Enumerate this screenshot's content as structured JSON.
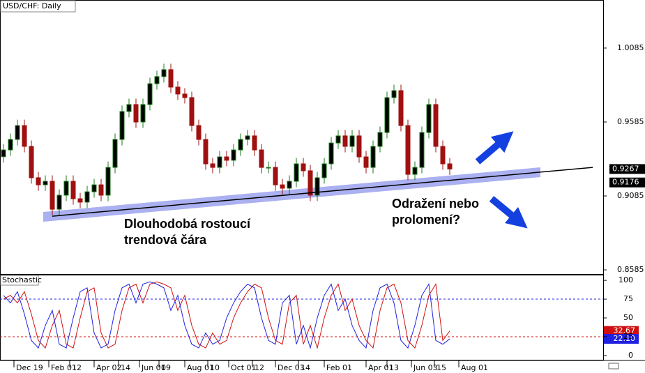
{
  "chart_data": [
    {
      "type": "candlestick",
      "title": "USD/CHF: Daily",
      "x": [
        1,
        2,
        3,
        4,
        5,
        6,
        7,
        8,
        9,
        10,
        11,
        12,
        13,
        14,
        15,
        16,
        17,
        18,
        19,
        20,
        21,
        22,
        23,
        24,
        25,
        26,
        27,
        28,
        29,
        30,
        31,
        32,
        33,
        34,
        35,
        36,
        37,
        38,
        39,
        40,
        41,
        42,
        43,
        44,
        45,
        46,
        47,
        48,
        49,
        50,
        51,
        52,
        53,
        54,
        55,
        56,
        57,
        58,
        59,
        60,
        61,
        62,
        63,
        64,
        65
      ],
      "open": [
        0.935,
        0.9396,
        0.9467,
        0.9561,
        0.942,
        0.9208,
        0.916,
        0.9184,
        0.8995,
        0.909,
        0.9184,
        0.9066,
        0.9043,
        0.9113,
        0.916,
        0.909,
        0.9278,
        0.9467,
        0.9656,
        0.9703,
        0.9585,
        0.9703,
        0.9844,
        0.9892,
        0.9939,
        0.9821,
        0.9774,
        0.975,
        0.9561,
        0.9467,
        0.9302,
        0.9278,
        0.9349,
        0.9326,
        0.9396,
        0.9467,
        0.9491,
        0.9396,
        0.9278,
        0.9278,
        0.916,
        0.9137,
        0.9184,
        0.9302,
        0.9255,
        0.909,
        0.9208,
        0.9302,
        0.9443,
        0.9491,
        0.942,
        0.9491,
        0.9349,
        0.9278,
        0.942,
        0.9514,
        0.975,
        0.9797,
        0.9561,
        0.9231,
        0.9278,
        0.9514,
        0.9703,
        0.942,
        0.9302
      ],
      "high": [
        0.9436,
        0.9507,
        0.9601,
        0.9601,
        0.946,
        0.9248,
        0.9224,
        0.9224,
        0.913,
        0.9224,
        0.9224,
        0.9106,
        0.9153,
        0.92,
        0.92,
        0.9318,
        0.9507,
        0.9696,
        0.9743,
        0.9743,
        0.9743,
        0.9884,
        0.9932,
        0.9979,
        0.9979,
        0.9861,
        0.9814,
        0.979,
        0.9601,
        0.9507,
        0.9342,
        0.9389,
        0.9389,
        0.9436,
        0.9507,
        0.9531,
        0.9531,
        0.9436,
        0.9318,
        0.9318,
        0.92,
        0.9224,
        0.9342,
        0.9342,
        0.9295,
        0.9248,
        0.9342,
        0.9483,
        0.9531,
        0.9531,
        0.9531,
        0.9531,
        0.9389,
        0.946,
        0.9554,
        0.979,
        0.9837,
        0.9837,
        0.9601,
        0.9318,
        0.9554,
        0.9743,
        0.9743,
        0.946,
        0.9342
      ],
      "low": [
        0.931,
        0.9356,
        0.9427,
        0.938,
        0.9168,
        0.912,
        0.912,
        0.8955,
        0.8955,
        0.905,
        0.9026,
        0.9003,
        0.9003,
        0.9073,
        0.905,
        0.905,
        0.9238,
        0.9427,
        0.9616,
        0.9545,
        0.9545,
        0.9663,
        0.9804,
        0.9852,
        0.9781,
        0.9734,
        0.971,
        0.9521,
        0.9427,
        0.9262,
        0.9238,
        0.9238,
        0.9286,
        0.9286,
        0.9356,
        0.9427,
        0.9356,
        0.9238,
        0.9238,
        0.912,
        0.9097,
        0.9097,
        0.9144,
        0.9215,
        0.905,
        0.905,
        0.9168,
        0.9262,
        0.9403,
        0.938,
        0.938,
        0.9309,
        0.9238,
        0.9238,
        0.938,
        0.9474,
        0.971,
        0.9521,
        0.9191,
        0.9191,
        0.9238,
        0.9474,
        0.938,
        0.9262,
        0.9227
      ],
      "close": [
        0.9396,
        0.9467,
        0.9561,
        0.942,
        0.9208,
        0.916,
        0.9184,
        0.8995,
        0.909,
        0.9184,
        0.9066,
        0.9043,
        0.9113,
        0.916,
        0.909,
        0.9278,
        0.9467,
        0.9656,
        0.9703,
        0.9585,
        0.9703,
        0.9844,
        0.9892,
        0.9939,
        0.9821,
        0.9774,
        0.975,
        0.9561,
        0.9467,
        0.9302,
        0.9278,
        0.9349,
        0.9326,
        0.9396,
        0.9467,
        0.9491,
        0.9396,
        0.9278,
        0.9278,
        0.916,
        0.9137,
        0.9184,
        0.9302,
        0.9255,
        0.909,
        0.9208,
        0.9302,
        0.9443,
        0.9491,
        0.942,
        0.9491,
        0.9349,
        0.9278,
        0.942,
        0.9514,
        0.975,
        0.9797,
        0.9561,
        0.9231,
        0.9278,
        0.9514,
        0.9703,
        0.942,
        0.9302,
        0.9267
      ],
      "up_color": "#1a7a1a",
      "down_color": "#a01010",
      "xlim": [
        0.5,
        87
      ],
      "ylim": [
        0.8557,
        1.041
      ],
      "yticks": [
        1.0085,
        0.9585,
        0.9085,
        0.8585
      ],
      "xticks": [
        {
          "value": 2.5,
          "label": "Dec 19"
        },
        {
          "value": 7.5,
          "label": "Feb 01"
        },
        {
          "value": 10.5,
          "label": "12"
        },
        {
          "value": 14,
          "label": "Apr 02"
        },
        {
          "value": 17.5,
          "label": "14"
        },
        {
          "value": 20.5,
          "label": "Jun 01"
        },
        {
          "value": 23.3,
          "label": "09"
        },
        {
          "value": 27,
          "label": "Aug 01"
        },
        {
          "value": 30.3,
          "label": "10"
        },
        {
          "value": 33.3,
          "label": "Oct 01"
        },
        {
          "value": 36.7,
          "label": "12"
        },
        {
          "value": 40,
          "label": "Dec 03"
        },
        {
          "value": 43.3,
          "label": "14"
        },
        {
          "value": 47,
          "label": "Feb 01"
        },
        {
          "value": 53,
          "label": "Apr 01"
        },
        {
          "value": 56,
          "label": "13"
        },
        {
          "value": 59.5,
          "label": "Jun 03"
        },
        {
          "value": 62.8,
          "label": "15"
        },
        {
          "value": 66.3,
          "label": "Aug 01"
        }
      ],
      "trendline": {
        "x": [
          8,
          85.5
        ],
        "y": [
          0.8948,
          0.9278
        ],
        "label": 0.9176,
        "color": "#000000"
      },
      "annotations": [
        {
          "lines": [
            "Dlouhodobá rostoucí",
            "trendová čára"
          ]
        },
        {
          "lines": [
            "Odražení nebo",
            "prolomení?"
          ]
        }
      ]
    },
    {
      "type": "line",
      "title": "Stochastic",
      "x": [
        1,
        2,
        3,
        4,
        5,
        6,
        7,
        8,
        9,
        10,
        11,
        12,
        13,
        14,
        15,
        16,
        17,
        18,
        19,
        20,
        21,
        22,
        23,
        24,
        25,
        26,
        27,
        28,
        29,
        30,
        31,
        32,
        33,
        34,
        35,
        36,
        37,
        38,
        39,
        40,
        41,
        42,
        43,
        44,
        45,
        46,
        47,
        48,
        49,
        50,
        51,
        52,
        53,
        54,
        55,
        56,
        57,
        58,
        59,
        60,
        61,
        62,
        63,
        64,
        65
      ],
      "series": [
        {
          "color": "#d01010",
          "last_label": "32.67",
          "values": [
            75,
            80,
            70,
            85,
            55,
            20,
            10,
            40,
            60,
            15,
            10,
            50,
            85,
            90,
            30,
            10,
            15,
            60,
            90,
            95,
            70,
            95,
            98,
            95,
            90,
            60,
            80,
            40,
            15,
            10,
            30,
            15,
            20,
            50,
            70,
            85,
            95,
            90,
            50,
            20,
            15,
            70,
            80,
            15,
            40,
            10,
            50,
            80,
            95,
            60,
            75,
            40,
            20,
            10,
            60,
            90,
            95,
            70,
            20,
            10,
            40,
            80,
            95,
            20,
            32.67
          ]
        },
        {
          "color": "#2020e0",
          "last_label": "22.10",
          "values": [
            80,
            70,
            85,
            55,
            20,
            10,
            40,
            60,
            15,
            10,
            50,
            85,
            90,
            30,
            10,
            15,
            60,
            90,
            95,
            70,
            95,
            98,
            95,
            90,
            60,
            80,
            40,
            15,
            10,
            30,
            15,
            20,
            50,
            70,
            85,
            95,
            90,
            50,
            20,
            15,
            70,
            80,
            15,
            40,
            10,
            50,
            80,
            95,
            60,
            75,
            40,
            20,
            10,
            60,
            90,
            95,
            70,
            20,
            10,
            40,
            80,
            95,
            20,
            15,
            22.1
          ]
        }
      ],
      "levels": [
        {
          "value": 75,
          "color": "#2020e0"
        },
        {
          "value": 25,
          "color": "#d01010"
        }
      ],
      "xlim": [
        0.5,
        87
      ],
      "ylim": [
        -6.6,
        106.6
      ],
      "yticks": [
        100,
        75,
        50,
        25,
        0
      ]
    }
  ]
}
